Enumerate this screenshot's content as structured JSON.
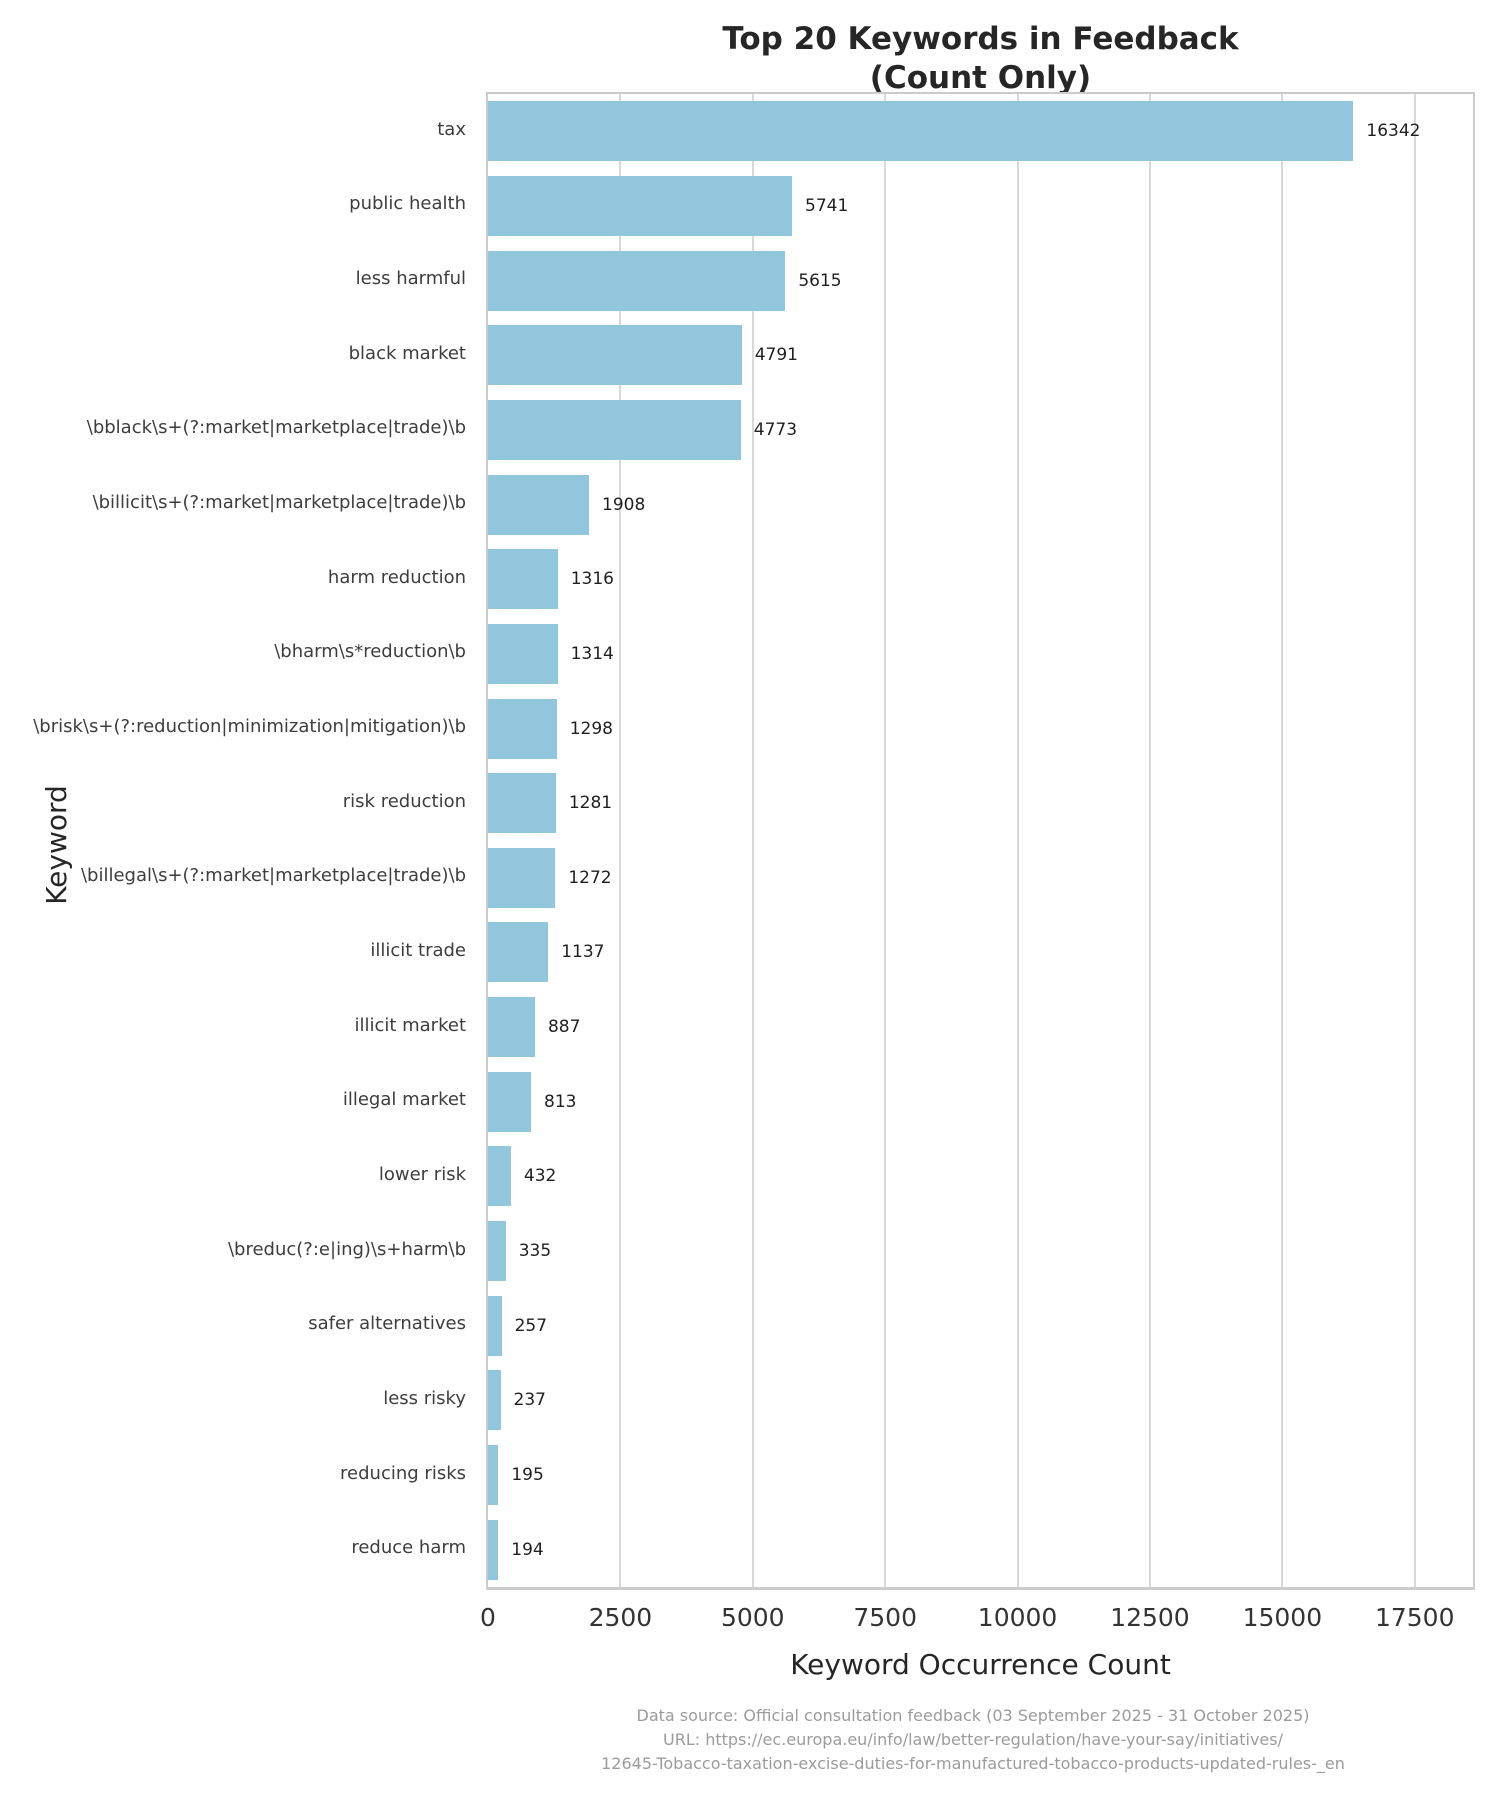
{
  "title": {
    "line1": "Top 20 Keywords in Feedback",
    "line2": "(Count Only)"
  },
  "chart_data": {
    "type": "bar",
    "orientation": "horizontal",
    "title": "Top 20 Keywords in Feedback (Count Only)",
    "xlabel": "Keyword Occurrence Count",
    "ylabel": "Keyword",
    "categories": [
      "tax",
      "public health",
      "less harmful",
      "black market",
      "\\bblack\\s+(?:market|marketplace|trade)\\b",
      "\\billicit\\s+(?:market|marketplace|trade)\\b",
      "harm reduction",
      "\\bharm\\s*reduction\\b",
      "\\brisk\\s+(?:reduction|minimization|mitigation)\\b",
      "risk reduction",
      "\\billegal\\s+(?:market|marketplace|trade)\\b",
      "illicit trade",
      "illicit market",
      "illegal market",
      "lower risk",
      "\\breduc(?:e|ing)\\s+harm\\b",
      "safer alternatives",
      "less risky",
      "reducing risks",
      "reduce harm"
    ],
    "values": [
      16342,
      5741,
      5615,
      4791,
      4773,
      1908,
      1316,
      1314,
      1298,
      1281,
      1272,
      1137,
      887,
      813,
      432,
      335,
      257,
      237,
      195,
      194
    ],
    "xticks": [
      0,
      2500,
      5000,
      7500,
      10000,
      12500,
      15000,
      17500
    ],
    "xlim": [
      0,
      18600
    ],
    "grid": "vertical",
    "legend": "none",
    "bar_color": "#92c6dc"
  },
  "footer": {
    "line1": "Data source: Official consultation feedback (03 September 2025 - 31 October 2025)",
    "line2": "URL: https://ec.europa.eu/info/law/better-regulation/have-your-say/initiatives/",
    "line3": "12645-Tobacco-taxation-excise-duties-for-manufactured-tobacco-products-updated-rules-_en"
  }
}
